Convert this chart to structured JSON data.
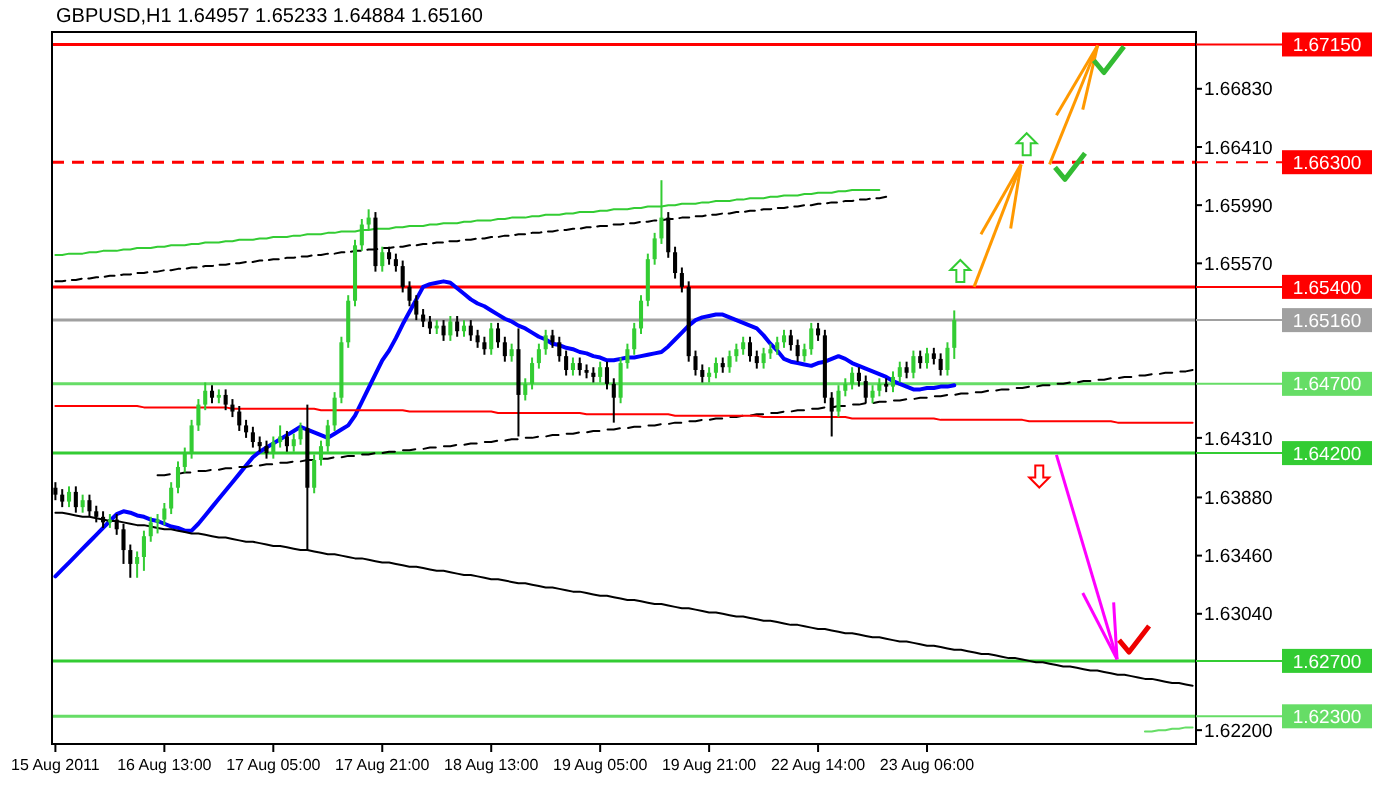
{
  "chart_data": {
    "type": "candlestick",
    "title": "GBPUSD,H1  1.64957 1.65233 1.64884 1.65160",
    "categories": [
      "15 Aug 2011",
      null,
      null,
      null,
      null,
      null,
      null,
      null,
      null,
      null,
      null,
      null,
      null,
      null,
      null,
      null,
      "16 Aug 13:00",
      null,
      null,
      null,
      null,
      null,
      null,
      null,
      null,
      null,
      null,
      null,
      null,
      null,
      null,
      null,
      "17 Aug 05:00",
      null,
      null,
      null,
      null,
      null,
      null,
      null,
      null,
      null,
      null,
      null,
      null,
      null,
      null,
      null,
      "17 Aug 21:00",
      null,
      null,
      null,
      null,
      null,
      null,
      null,
      null,
      null,
      null,
      null,
      null,
      null,
      null,
      null,
      "18 Aug 13:00",
      null,
      null,
      null,
      null,
      null,
      null,
      null,
      null,
      null,
      null,
      null,
      null,
      null,
      null,
      null,
      "19 Aug 05:00",
      null,
      null,
      null,
      null,
      null,
      null,
      null,
      null,
      null,
      null,
      null,
      null,
      null,
      null,
      null,
      "19 Aug 21:00",
      null,
      null,
      null,
      null,
      null,
      null,
      null,
      null,
      null,
      null,
      null,
      null,
      null,
      null,
      null,
      "22 Aug 14:00",
      null,
      null,
      null,
      null,
      null,
      null,
      null,
      null,
      null,
      null,
      null,
      null,
      null,
      null,
      null,
      "23 Aug 06:00",
      null,
      null,
      null,
      null,
      null,
      null,
      null,
      null,
      null,
      null,
      null,
      null,
      null,
      null,
      null,
      null,
      null,
      null,
      null,
      null,
      null,
      null,
      null,
      null,
      null,
      null,
      null,
      null,
      null,
      null,
      null,
      null,
      null,
      null,
      null,
      null,
      null,
      null,
      null
    ],
    "ohlc": [
      [
        1.6395,
        1.6399,
        1.6386,
        1.639
      ],
      [
        1.639,
        1.6394,
        1.6381,
        1.6385
      ],
      [
        1.6385,
        1.6396,
        1.6381,
        1.6392
      ],
      [
        1.6392,
        1.6396,
        1.6377,
        1.6381
      ],
      [
        1.6381,
        1.639,
        1.6377,
        1.6386
      ],
      [
        1.6386,
        1.639,
        1.6374,
        1.6378
      ],
      [
        1.6378,
        1.6382,
        1.637,
        1.6374
      ],
      [
        1.6374,
        1.6378,
        1.6366,
        1.637
      ],
      [
        1.637,
        1.6376,
        1.6366,
        1.6372
      ],
      [
        1.6372,
        1.6376,
        1.6361,
        1.6365
      ],
      [
        1.6365,
        1.6369,
        1.634,
        1.635
      ],
      [
        1.635,
        1.6354,
        1.633,
        1.634
      ],
      [
        1.634,
        1.6349,
        1.633,
        1.6345
      ],
      [
        1.6345,
        1.6364,
        1.6335,
        1.636
      ],
      [
        1.636,
        1.6374,
        1.6356,
        1.637
      ],
      [
        1.637,
        1.6376,
        1.6362,
        1.6372
      ],
      [
        1.6372,
        1.6384,
        1.6368,
        1.638
      ],
      [
        1.638,
        1.6399,
        1.6376,
        1.6395
      ],
      [
        1.6395,
        1.6414,
        1.6391,
        1.641
      ],
      [
        1.641,
        1.6424,
        1.6406,
        1.642
      ],
      [
        1.642,
        1.6444,
        1.6416,
        1.644
      ],
      [
        1.644,
        1.6459,
        1.6436,
        1.6455
      ],
      [
        1.6455,
        1.6471,
        1.6451,
        1.6465
      ],
      [
        1.6465,
        1.6469,
        1.6456,
        1.646
      ],
      [
        1.646,
        1.6466,
        1.6456,
        1.6462
      ],
      [
        1.6462,
        1.6466,
        1.6451,
        1.6455
      ],
      [
        1.6455,
        1.6459,
        1.6446,
        1.645
      ],
      [
        1.645,
        1.6454,
        1.6436,
        1.644
      ],
      [
        1.644,
        1.6444,
        1.6431,
        1.6435
      ],
      [
        1.6435,
        1.6439,
        1.6424,
        1.6428
      ],
      [
        1.6428,
        1.6432,
        1.6421,
        1.6425
      ],
      [
        1.6425,
        1.6429,
        1.6416,
        1.642
      ],
      [
        1.642,
        1.6432,
        1.6416,
        1.6428
      ],
      [
        1.6428,
        1.644,
        1.6424,
        1.6432
      ],
      [
        1.6432,
        1.6436,
        1.6421,
        1.6425
      ],
      [
        1.6425,
        1.6434,
        1.6421,
        1.643
      ],
      [
        1.643,
        1.6442,
        1.6426,
        1.6438
      ],
      [
        1.6438,
        1.6455,
        1.635,
        1.6395
      ],
      [
        1.6395,
        1.6419,
        1.6391,
        1.6415
      ],
      [
        1.6415,
        1.6429,
        1.6411,
        1.6425
      ],
      [
        1.6425,
        1.6444,
        1.6421,
        1.644
      ],
      [
        1.644,
        1.6464,
        1.6436,
        1.646
      ],
      [
        1.646,
        1.6504,
        1.6456,
        1.65
      ],
      [
        1.65,
        1.6534,
        1.6496,
        1.653
      ],
      [
        1.653,
        1.6574,
        1.6526,
        1.657
      ],
      [
        1.657,
        1.6589,
        1.6566,
        1.6585
      ],
      [
        1.6585,
        1.6596,
        1.6581,
        1.659
      ],
      [
        1.659,
        1.6594,
        1.6551,
        1.6555
      ],
      [
        1.6555,
        1.6569,
        1.6551,
        1.6565
      ],
      [
        1.6565,
        1.6569,
        1.6556,
        1.656
      ],
      [
        1.656,
        1.6564,
        1.6551,
        1.6555
      ],
      [
        1.6555,
        1.6559,
        1.6536,
        1.654
      ],
      [
        1.654,
        1.6544,
        1.6526,
        1.653
      ],
      [
        1.653,
        1.6534,
        1.6516,
        1.652
      ],
      [
        1.652,
        1.6524,
        1.6511,
        1.6515
      ],
      [
        1.6515,
        1.6519,
        1.6506,
        1.651
      ],
      [
        1.651,
        1.6516,
        1.6506,
        1.6512
      ],
      [
        1.6512,
        1.6516,
        1.6501,
        1.6505
      ],
      [
        1.6505,
        1.6519,
        1.6501,
        1.6515
      ],
      [
        1.6515,
        1.6519,
        1.6504,
        1.6508
      ],
      [
        1.6508,
        1.6516,
        1.6504,
        1.6512
      ],
      [
        1.6512,
        1.6516,
        1.6501,
        1.6505
      ],
      [
        1.6505,
        1.6509,
        1.6496,
        1.65
      ],
      [
        1.65,
        1.6504,
        1.6491,
        1.6495
      ],
      [
        1.6495,
        1.6514,
        1.6491,
        1.651
      ],
      [
        1.651,
        1.6514,
        1.6496,
        1.65
      ],
      [
        1.65,
        1.6504,
        1.6486,
        1.649
      ],
      [
        1.649,
        1.6499,
        1.6486,
        1.6495
      ],
      [
        1.6495,
        1.651,
        1.6432,
        1.6462
      ],
      [
        1.6462,
        1.6474,
        1.6458,
        1.647
      ],
      [
        1.647,
        1.6489,
        1.6466,
        1.6485
      ],
      [
        1.6485,
        1.6499,
        1.6481,
        1.6495
      ],
      [
        1.6495,
        1.6509,
        1.6491,
        1.6505
      ],
      [
        1.6505,
        1.6509,
        1.6496,
        1.65
      ],
      [
        1.65,
        1.6504,
        1.6486,
        1.649
      ],
      [
        1.649,
        1.6494,
        1.6476,
        1.648
      ],
      [
        1.648,
        1.6489,
        1.6476,
        1.6485
      ],
      [
        1.6485,
        1.6489,
        1.6476,
        1.648
      ],
      [
        1.648,
        1.6484,
        1.6474,
        1.6478
      ],
      [
        1.6478,
        1.6482,
        1.6471,
        1.6475
      ],
      [
        1.6475,
        1.6486,
        1.6471,
        1.6482
      ],
      [
        1.6482,
        1.6486,
        1.6466,
        1.647
      ],
      [
        1.647,
        1.6474,
        1.6442,
        1.646
      ],
      [
        1.646,
        1.6489,
        1.6456,
        1.6485
      ],
      [
        1.6485,
        1.6499,
        1.6481,
        1.6495
      ],
      [
        1.6495,
        1.6514,
        1.6491,
        1.651
      ],
      [
        1.651,
        1.6534,
        1.6506,
        1.653
      ],
      [
        1.653,
        1.6564,
        1.6526,
        1.656
      ],
      [
        1.656,
        1.6579,
        1.6556,
        1.6575
      ],
      [
        1.6575,
        1.6617,
        1.6571,
        1.659
      ],
      [
        1.659,
        1.6594,
        1.6561,
        1.6565
      ],
      [
        1.6565,
        1.6569,
        1.6546,
        1.655
      ],
      [
        1.655,
        1.6554,
        1.6536,
        1.654
      ],
      [
        1.654,
        1.6544,
        1.6486,
        1.649
      ],
      [
        1.649,
        1.6494,
        1.6476,
        1.648
      ],
      [
        1.648,
        1.6484,
        1.6471,
        1.6475
      ],
      [
        1.6475,
        1.6482,
        1.6471,
        1.6478
      ],
      [
        1.6478,
        1.6489,
        1.6474,
        1.6485
      ],
      [
        1.6485,
        1.6489,
        1.6478,
        1.6482
      ],
      [
        1.6482,
        1.6494,
        1.6478,
        1.649
      ],
      [
        1.649,
        1.6499,
        1.6486,
        1.6495
      ],
      [
        1.6495,
        1.6504,
        1.6491,
        1.65
      ],
      [
        1.65,
        1.6504,
        1.6486,
        1.649
      ],
      [
        1.649,
        1.6494,
        1.6481,
        1.6485
      ],
      [
        1.6485,
        1.6496,
        1.6481,
        1.6492
      ],
      [
        1.6492,
        1.6499,
        1.6488,
        1.6495
      ],
      [
        1.6495,
        1.6504,
        1.6491,
        1.65
      ],
      [
        1.65,
        1.6509,
        1.6496,
        1.6505
      ],
      [
        1.6505,
        1.6509,
        1.6494,
        1.6498
      ],
      [
        1.6498,
        1.6502,
        1.6486,
        1.649
      ],
      [
        1.649,
        1.6499,
        1.6486,
        1.6495
      ],
      [
        1.6495,
        1.6514,
        1.6491,
        1.651
      ],
      [
        1.651,
        1.6514,
        1.6501,
        1.6505
      ],
      [
        1.6505,
        1.6509,
        1.6456,
        1.646
      ],
      [
        1.646,
        1.6464,
        1.6432,
        1.645
      ],
      [
        1.645,
        1.6469,
        1.6446,
        1.6465
      ],
      [
        1.6465,
        1.6474,
        1.6461,
        1.647
      ],
      [
        1.647,
        1.6482,
        1.6466,
        1.6478
      ],
      [
        1.6478,
        1.6482,
        1.6468,
        1.6472
      ],
      [
        1.6472,
        1.6476,
        1.6456,
        1.646
      ],
      [
        1.646,
        1.6469,
        1.6456,
        1.6465
      ],
      [
        1.6465,
        1.6474,
        1.6461,
        1.647
      ],
      [
        1.647,
        1.6474,
        1.6464,
        1.6468
      ],
      [
        1.6468,
        1.6479,
        1.6464,
        1.6475
      ],
      [
        1.6475,
        1.6486,
        1.6471,
        1.6482
      ],
      [
        1.6482,
        1.6486,
        1.6474,
        1.6478
      ],
      [
        1.6478,
        1.6494,
        1.6474,
        1.649
      ],
      [
        1.649,
        1.6494,
        1.6481,
        1.6485
      ],
      [
        1.6485,
        1.6496,
        1.6481,
        1.6492
      ],
      [
        1.6492,
        1.6496,
        1.6484,
        1.6488
      ],
      [
        1.6488,
        1.6492,
        1.6476,
        1.648
      ],
      [
        1.648,
        1.65,
        1.6476,
        1.6496
      ],
      [
        1.6496,
        1.6523,
        1.6488,
        1.6516
      ],
      null,
      null,
      null,
      null,
      null,
      null,
      null,
      null,
      null,
      null,
      null,
      null,
      null,
      null,
      null,
      null,
      null,
      null,
      null,
      null,
      null,
      null,
      null,
      null,
      null,
      null,
      null,
      null,
      null,
      null,
      null,
      null,
      null,
      null,
      null
    ],
    "series": [
      {
        "type": "line",
        "color": "#0000ff",
        "values": [
          1.6331,
          1.6336,
          1.6341,
          1.6346,
          1.6351,
          1.6356,
          1.6361,
          1.6366,
          1.6371,
          1.6376,
          1.6378,
          1.6377,
          1.6375,
          1.6374,
          1.6372,
          1.6371,
          1.6369,
          1.6367,
          1.6366,
          1.6364,
          1.6364,
          1.6369,
          1.6375,
          1.6381,
          1.6387,
          1.6393,
          1.6399,
          1.6405,
          1.6411,
          1.6417,
          1.6421,
          1.6424,
          1.6427,
          1.643,
          1.6433,
          1.6436,
          1.6439,
          1.6437,
          1.6435,
          1.6433,
          1.6431,
          1.6434,
          1.6437,
          1.644,
          1.6447,
          1.6457,
          1.6467,
          1.6477,
          1.6487,
          1.6494,
          1.6503,
          1.6513,
          1.6522,
          1.6531,
          1.654,
          1.6542,
          1.6543,
          1.6544,
          1.6543,
          1.6539,
          1.6535,
          1.6531,
          1.6528,
          1.6526,
          1.6523,
          1.652,
          1.6517,
          1.6515,
          1.6512,
          1.651,
          1.6507,
          1.6504,
          1.6502,
          1.6499,
          1.6498,
          1.6496,
          1.6495,
          1.6493,
          1.6492,
          1.649,
          1.6489,
          1.6487,
          1.6487,
          1.6488,
          1.6489,
          1.6489,
          1.649,
          1.6491,
          1.6492,
          1.6493,
          1.6497,
          1.6502,
          1.6507,
          1.6512,
          1.6516,
          1.6518,
          1.6519,
          1.652,
          1.652,
          1.6518,
          1.6516,
          1.6514,
          1.6512,
          1.651,
          1.6505,
          1.6499,
          1.6494,
          1.6488,
          1.6486,
          1.6485,
          1.6484,
          1.6483,
          1.6485,
          1.6486,
          1.6488,
          1.649,
          1.6488,
          1.6485,
          1.6483,
          1.6481,
          1.6479,
          1.6477,
          1.6475,
          1.6472,
          1.647,
          1.6468,
          1.6466,
          1.6466,
          1.6467,
          1.6467,
          1.6468,
          1.6468,
          1.6469,
          null,
          null,
          null,
          null,
          null,
          null,
          null,
          null,
          null,
          null,
          null,
          null,
          null,
          null,
          null,
          null,
          null,
          null,
          null,
          null,
          null,
          null,
          null,
          null,
          null,
          null,
          null,
          null,
          null,
          null,
          null,
          null,
          null,
          null,
          null
        ]
      },
      {
        "type": "line",
        "color": "#33cc33",
        "values": [
          1.6563,
          1.6563,
          1.6564,
          1.6564,
          1.6564,
          1.6565,
          1.6565,
          1.6566,
          1.6566,
          1.6566,
          1.6567,
          1.6567,
          1.6568,
          1.6568,
          1.6568,
          1.6569,
          1.6569,
          1.657,
          1.657,
          1.657,
          1.6571,
          1.6571,
          1.6572,
          1.6572,
          1.6572,
          1.6573,
          1.6573,
          1.6574,
          1.6574,
          1.6574,
          1.6575,
          1.6575,
          1.6576,
          1.6576,
          1.6576,
          1.6577,
          1.6577,
          1.6578,
          1.6578,
          1.6578,
          1.6579,
          1.6579,
          1.658,
          1.658,
          1.658,
          1.6581,
          1.6581,
          1.6582,
          1.6582,
          1.6582,
          1.6583,
          1.6583,
          1.6584,
          1.6584,
          1.6584,
          1.6585,
          1.6585,
          1.6586,
          1.6586,
          1.6586,
          1.6587,
          1.6587,
          1.6588,
          1.6588,
          1.6588,
          1.6589,
          1.6589,
          1.659,
          1.659,
          1.659,
          1.6591,
          1.6591,
          1.6592,
          1.6592,
          1.6592,
          1.6593,
          1.6593,
          1.6594,
          1.6594,
          1.6594,
          1.6595,
          1.6595,
          1.6596,
          1.6596,
          1.6596,
          1.6597,
          1.6597,
          1.6598,
          1.6598,
          1.6598,
          1.6599,
          1.6599,
          1.66,
          1.66,
          1.66,
          1.6601,
          1.6601,
          1.6602,
          1.6602,
          1.6602,
          1.6603,
          1.6603,
          1.6604,
          1.6604,
          1.6604,
          1.6605,
          1.6605,
          1.6606,
          1.6606,
          1.6606,
          1.6607,
          1.6607,
          1.6608,
          1.6608,
          1.6608,
          1.6609,
          1.6609,
          1.661,
          1.661,
          1.661,
          1.661,
          1.661,
          null,
          null,
          null,
          null,
          null,
          null,
          null,
          null,
          null,
          null,
          null,
          null,
          null,
          null,
          null,
          null,
          null,
          null,
          null,
          null,
          null,
          null,
          null,
          null,
          null,
          null,
          null,
          null,
          null,
          null,
          null,
          null,
          null,
          null,
          null,
          null,
          null,
          null,
          null,
          null,
          null,
          null,
          null,
          null,
          null,
          null
        ]
      },
      {
        "type": "line",
        "color": "#000000",
        "line_style": "dashed",
        "values": [
          1.6544,
          1.6544,
          1.6545,
          1.6545,
          1.6546,
          1.6546,
          1.6547,
          1.6547,
          1.6548,
          1.6548,
          1.6549,
          1.6549,
          1.655,
          1.655,
          1.6551,
          1.6551,
          1.6552,
          1.6552,
          1.6553,
          1.6553,
          1.6554,
          1.6554,
          1.6555,
          1.6555,
          1.6556,
          1.6556,
          1.6557,
          1.6557,
          1.6558,
          1.6558,
          1.6559,
          1.6559,
          1.656,
          1.656,
          1.6561,
          1.6561,
          1.6562,
          1.6562,
          1.6563,
          1.6563,
          1.6564,
          1.6564,
          1.6565,
          1.6565,
          1.6566,
          1.6566,
          1.6567,
          1.6567,
          1.6568,
          1.6568,
          1.6569,
          1.6569,
          1.657,
          1.657,
          1.6571,
          1.6571,
          1.6572,
          1.6572,
          1.6573,
          1.6573,
          1.6574,
          1.6574,
          1.6575,
          1.6575,
          1.6576,
          1.6576,
          1.6577,
          1.6577,
          1.6578,
          1.6578,
          1.6579,
          1.6579,
          1.658,
          1.658,
          1.6581,
          1.6581,
          1.6582,
          1.6582,
          1.6583,
          1.6583,
          1.6584,
          1.6584,
          1.6585,
          1.6585,
          1.6586,
          1.6586,
          1.6587,
          1.6587,
          1.6588,
          1.6588,
          1.6589,
          1.6589,
          1.659,
          1.659,
          1.6591,
          1.6591,
          1.6592,
          1.6592,
          1.6593,
          1.6593,
          1.6594,
          1.6594,
          1.6595,
          1.6595,
          1.6596,
          1.6596,
          1.6597,
          1.6597,
          1.6598,
          1.6598,
          1.6599,
          1.6599,
          1.66,
          1.66,
          1.6601,
          1.6601,
          1.6602,
          1.6602,
          1.6603,
          1.6603,
          1.6604,
          1.6604,
          1.6605,
          null,
          null,
          null,
          null,
          null,
          null,
          null,
          null,
          null,
          null,
          null,
          null,
          null,
          null,
          null,
          null,
          null,
          null,
          null,
          null,
          null,
          null,
          null,
          null,
          null,
          null,
          null,
          null,
          null,
          null,
          null,
          null,
          null,
          null,
          null,
          null,
          null,
          null,
          null,
          null,
          null,
          null,
          null,
          null,
          null
        ]
      },
      {
        "type": "line",
        "color": "#000000",
        "line_style": "dashed",
        "values": [
          null,
          null,
          null,
          null,
          null,
          null,
          null,
          null,
          null,
          null,
          null,
          null,
          null,
          null,
          null,
          1.6404,
          1.6404,
          1.6405,
          1.6405,
          1.6406,
          1.6406,
          1.6407,
          1.6407,
          1.6408,
          1.6408,
          1.6409,
          1.6409,
          1.641,
          1.641,
          1.6411,
          1.6411,
          1.6412,
          1.6412,
          1.6413,
          1.6413,
          1.6414,
          1.6414,
          1.6415,
          1.6415,
          1.6416,
          1.6416,
          1.6417,
          1.6417,
          1.6418,
          1.6418,
          1.6419,
          1.6419,
          1.642,
          1.642,
          1.6421,
          1.6421,
          1.6422,
          1.6422,
          1.6423,
          1.6423,
          1.6424,
          1.6424,
          1.6425,
          1.6425,
          1.6426,
          1.6426,
          1.6427,
          1.6427,
          1.6428,
          1.6428,
          1.6429,
          1.6429,
          1.643,
          1.643,
          1.6431,
          1.6431,
          1.6432,
          1.6432,
          1.6433,
          1.6433,
          1.6434,
          1.6434,
          1.6435,
          1.6435,
          1.6436,
          1.6436,
          1.6437,
          1.6437,
          1.6438,
          1.6438,
          1.6439,
          1.6439,
          1.644,
          1.644,
          1.6441,
          1.6441,
          1.6442,
          1.6442,
          1.6443,
          1.6443,
          1.6444,
          1.6444,
          1.6445,
          1.6445,
          1.6446,
          1.6446,
          1.6447,
          1.6447,
          1.6448,
          1.6448,
          1.6449,
          1.6449,
          1.645,
          1.645,
          1.6451,
          1.6451,
          1.6452,
          1.6452,
          1.6453,
          1.6453,
          1.6454,
          1.6454,
          1.6455,
          1.6455,
          1.6456,
          1.6456,
          1.6457,
          1.6457,
          1.6458,
          1.6458,
          1.6459,
          1.6459,
          1.646,
          1.646,
          1.6461,
          1.6461,
          1.6462,
          1.6462,
          1.6463,
          1.6463,
          1.6464,
          1.6464,
          1.6465,
          1.6465,
          1.6466,
          1.6466,
          1.6467,
          1.6467,
          1.6468,
          1.6468,
          1.6469,
          1.6469,
          1.647,
          1.647,
          1.6471,
          1.6471,
          1.6472,
          1.6472,
          1.6473,
          1.6473,
          1.6474,
          1.6474,
          1.6475,
          1.6475,
          1.6476,
          1.6476,
          1.6477,
          1.6477,
          1.6478,
          1.6478,
          1.6479,
          1.6479,
          1.648
        ]
      },
      {
        "type": "line",
        "color": "#000000",
        "values": [
          1.6377,
          1.6377,
          1.6376,
          1.6375,
          1.6374,
          1.6374,
          1.6373,
          1.6372,
          1.6371,
          1.6371,
          1.637,
          1.6369,
          1.6368,
          1.6368,
          1.6367,
          1.6366,
          1.6365,
          1.6365,
          1.6364,
          1.6363,
          1.6362,
          1.6362,
          1.6361,
          1.636,
          1.6359,
          1.6359,
          1.6358,
          1.6357,
          1.6356,
          1.6356,
          1.6355,
          1.6354,
          1.6353,
          1.6353,
          1.6352,
          1.6351,
          1.635,
          1.635,
          1.6349,
          1.6348,
          1.6347,
          1.6347,
          1.6346,
          1.6345,
          1.6344,
          1.6344,
          1.6343,
          1.6342,
          1.6341,
          1.6341,
          1.634,
          1.6339,
          1.6338,
          1.6338,
          1.6337,
          1.6336,
          1.6335,
          1.6335,
          1.6334,
          1.6333,
          1.6332,
          1.6332,
          1.6331,
          1.633,
          1.6329,
          1.6329,
          1.6328,
          1.6327,
          1.6326,
          1.6326,
          1.6325,
          1.6324,
          1.6323,
          1.6323,
          1.6322,
          1.6321,
          1.632,
          1.632,
          1.6319,
          1.6318,
          1.6317,
          1.6317,
          1.6316,
          1.6315,
          1.6314,
          1.6314,
          1.6313,
          1.6312,
          1.6311,
          1.6311,
          1.631,
          1.6309,
          1.6308,
          1.6308,
          1.6307,
          1.6306,
          1.6305,
          1.6305,
          1.6304,
          1.6303,
          1.6302,
          1.6302,
          1.6301,
          1.63,
          1.6299,
          1.6299,
          1.6298,
          1.6297,
          1.6296,
          1.6296,
          1.6295,
          1.6294,
          1.6293,
          1.6293,
          1.6292,
          1.6291,
          1.629,
          1.629,
          1.6289,
          1.6288,
          1.6287,
          1.6287,
          1.6286,
          1.6285,
          1.6284,
          1.6284,
          1.6283,
          1.6282,
          1.6281,
          1.6281,
          1.628,
          1.6279,
          1.6278,
          1.6278,
          1.6277,
          1.6276,
          1.6275,
          1.6275,
          1.6274,
          1.6273,
          1.6272,
          1.6272,
          1.6271,
          1.627,
          1.6269,
          1.6269,
          1.6268,
          1.6267,
          1.6266,
          1.6266,
          1.6265,
          1.6264,
          1.6263,
          1.6263,
          1.6262,
          1.6261,
          1.626,
          1.626,
          1.6259,
          1.6258,
          1.6257,
          1.6257,
          1.6256,
          1.6255,
          1.6254,
          1.6254,
          1.6253,
          1.6252
        ]
      },
      {
        "type": "line",
        "color": "#ff0000",
        "values": [
          1.6454,
          1.6454,
          1.6454,
          1.6454,
          1.6454,
          1.6454,
          1.6454,
          1.6454,
          1.6454,
          1.6454,
          1.6454,
          1.6454,
          1.6454,
          1.6453,
          1.6453,
          1.6453,
          1.6453,
          1.6453,
          1.6453,
          1.6453,
          1.6453,
          1.6453,
          1.6453,
          1.6453,
          1.6453,
          1.6453,
          1.6452,
          1.6452,
          1.6452,
          1.6452,
          1.6452,
          1.6452,
          1.6452,
          1.6452,
          1.6452,
          1.6452,
          1.6452,
          1.6452,
          1.6452,
          1.6451,
          1.6451,
          1.6451,
          1.6451,
          1.6451,
          1.6451,
          1.6451,
          1.6451,
          1.6451,
          1.6451,
          1.6451,
          1.6451,
          1.6451,
          1.645,
          1.645,
          1.645,
          1.645,
          1.645,
          1.645,
          1.645,
          1.645,
          1.645,
          1.645,
          1.645,
          1.645,
          1.645,
          1.6449,
          1.6449,
          1.6449,
          1.6449,
          1.6449,
          1.6449,
          1.6449,
          1.6449,
          1.6449,
          1.6449,
          1.6449,
          1.6449,
          1.6449,
          1.6448,
          1.6448,
          1.6448,
          1.6448,
          1.6448,
          1.6448,
          1.6448,
          1.6448,
          1.6448,
          1.6448,
          1.6448,
          1.6448,
          1.6448,
          1.6447,
          1.6447,
          1.6447,
          1.6447,
          1.6447,
          1.6447,
          1.6447,
          1.6447,
          1.6447,
          1.6447,
          1.6447,
          1.6447,
          1.6447,
          1.6446,
          1.6446,
          1.6446,
          1.6446,
          1.6446,
          1.6446,
          1.6446,
          1.6446,
          1.6446,
          1.6446,
          1.6446,
          1.6446,
          1.6446,
          1.6445,
          1.6445,
          1.6445,
          1.6445,
          1.6445,
          1.6445,
          1.6445,
          1.6445,
          1.6445,
          1.6445,
          1.6445,
          1.6445,
          1.6445,
          1.6444,
          1.6444,
          1.6444,
          1.6444,
          1.6444,
          1.6444,
          1.6444,
          1.6444,
          1.6444,
          1.6444,
          1.6444,
          1.6444,
          1.6444,
          1.6443,
          1.6443,
          1.6443,
          1.6443,
          1.6443,
          1.6443,
          1.6443,
          1.6443,
          1.6443,
          1.6443,
          1.6443,
          1.6443,
          1.6443,
          1.6442,
          1.6442,
          1.6442,
          1.6442,
          1.6442,
          1.6442,
          1.6442,
          1.6442,
          1.6442,
          1.6442,
          1.6442,
          1.6442
        ]
      },
      {
        "type": "line",
        "color": "#66dd66",
        "values": [
          null,
          null,
          null,
          null,
          null,
          null,
          null,
          null,
          null,
          null,
          null,
          null,
          null,
          null,
          null,
          null,
          null,
          null,
          null,
          null,
          null,
          null,
          null,
          null,
          null,
          null,
          null,
          null,
          null,
          null,
          null,
          null,
          null,
          null,
          null,
          null,
          null,
          null,
          null,
          null,
          null,
          null,
          null,
          null,
          null,
          null,
          null,
          null,
          null,
          null,
          null,
          null,
          null,
          null,
          null,
          null,
          null,
          null,
          null,
          null,
          null,
          null,
          null,
          null,
          null,
          null,
          null,
          null,
          null,
          null,
          null,
          null,
          null,
          null,
          null,
          null,
          null,
          null,
          null,
          null,
          null,
          null,
          null,
          null,
          null,
          null,
          null,
          null,
          null,
          null,
          null,
          null,
          null,
          null,
          null,
          null,
          null,
          null,
          null,
          null,
          null,
          null,
          null,
          null,
          null,
          null,
          null,
          null,
          null,
          null,
          null,
          null,
          null,
          null,
          null,
          null,
          null,
          null,
          null,
          null,
          null,
          null,
          null,
          null,
          null,
          null,
          null,
          null,
          null,
          null,
          null,
          null,
          null,
          null,
          null,
          null,
          null,
          null,
          null,
          null,
          null,
          null,
          null,
          null,
          null,
          null,
          null,
          null,
          null,
          null,
          null,
          null,
          null,
          null,
          null,
          null,
          null,
          null,
          null,
          null,
          1.6219,
          1.6219,
          1.622,
          1.622,
          1.6221,
          1.6221,
          1.6222,
          1.6222
        ]
      }
    ],
    "ref_lines": [
      {
        "axis": "y",
        "value": 1.6715,
        "label": "1.67150",
        "color": "#ff0000"
      },
      {
        "axis": "y",
        "value": 1.663,
        "label": "1.66300",
        "color": "#ff0000",
        "line_style": "dashed"
      },
      {
        "axis": "y",
        "value": 1.654,
        "label": "1.65400",
        "color": "#ff0000"
      },
      {
        "axis": "y",
        "value": 1.6516,
        "label": "1.65160",
        "color": "#a0a0a0"
      },
      {
        "axis": "y",
        "value": 1.647,
        "label": "1.64700",
        "color": "#66dd66"
      },
      {
        "axis": "y",
        "value": 1.642,
        "label": "1.64200",
        "color": "#33cc33"
      },
      {
        "axis": "y",
        "value": 1.627,
        "label": "1.62700",
        "color": "#33cc33"
      },
      {
        "axis": "y",
        "value": 1.623,
        "label": "1.62300",
        "color": "#66dd66"
      }
    ],
    "ylim": [
      1.621,
      1.6724
    ],
    "yticks": [
      {
        "value": 1.6683,
        "label": "1.66830"
      },
      {
        "value": 1.6641,
        "label": "1.66410"
      },
      {
        "value": 1.6599,
        "label": "1.65990"
      },
      {
        "value": 1.6557,
        "label": "1.65570"
      },
      {
        "value": 1.6431,
        "label": "1.64310"
      },
      {
        "value": 1.6388,
        "label": "1.63880"
      },
      {
        "value": 1.6346,
        "label": "1.63460"
      },
      {
        "value": 1.6304,
        "label": "1.63040"
      },
      {
        "value": 1.622,
        "label": "1.62200"
      }
    ]
  }
}
